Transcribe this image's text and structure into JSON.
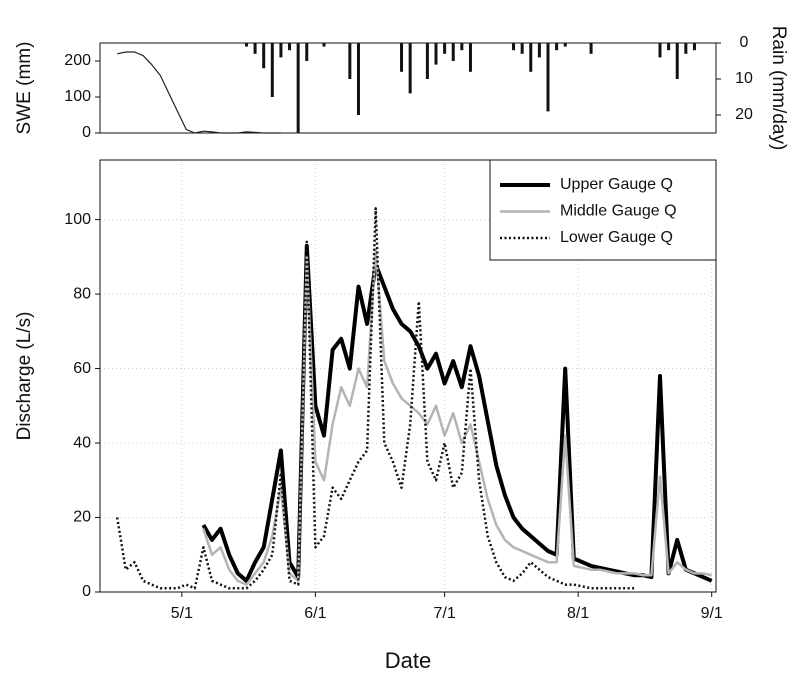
{
  "chart_data": [
    {
      "type": "combo",
      "y_label": "SWE (mm)",
      "y2_label": "Rain (mm/day)",
      "x": [
        "4/16",
        "4/18",
        "4/20",
        "4/22",
        "4/24",
        "4/26",
        "4/28",
        "4/30",
        "5/2",
        "5/4",
        "5/6",
        "5/8",
        "5/10",
        "5/12",
        "5/14",
        "5/16",
        "5/18",
        "5/20",
        "5/22",
        "5/24",
        "5/26",
        "5/28",
        "5/30",
        "6/1",
        "6/3",
        "6/5",
        "6/7",
        "6/9",
        "6/11",
        "6/13",
        "6/15",
        "6/17",
        "6/19",
        "6/21",
        "6/23",
        "6/25",
        "6/27",
        "6/29",
        "7/1",
        "7/3",
        "7/5",
        "7/7",
        "7/9",
        "7/11",
        "7/13",
        "7/15",
        "7/17",
        "7/19",
        "7/21",
        "7/23",
        "7/25",
        "7/27",
        "7/29",
        "7/31",
        "8/2",
        "8/4",
        "8/6",
        "8/8",
        "8/10",
        "8/12",
        "8/14",
        "8/16",
        "8/18",
        "8/20",
        "8/22",
        "8/24",
        "8/26",
        "8/28",
        "8/30",
        "9/1"
      ],
      "xlim": [
        "4/12",
        "9/2"
      ],
      "ylim": [
        0,
        250
      ],
      "yticks": [
        0,
        100,
        200
      ],
      "y2lim": [
        0,
        25
      ],
      "y2ticks": [
        0,
        10,
        20
      ],
      "y2_reversed": true,
      "series": [
        {
          "name": "SWE",
          "kind": "line",
          "color": "#222222",
          "axis": "y",
          "values": [
            220,
            225,
            225,
            215,
            190,
            160,
            110,
            60,
            10,
            0,
            5,
            3,
            0,
            0,
            0,
            3,
            2,
            0,
            0,
            0,
            null,
            null,
            null,
            null,
            null,
            null,
            null,
            null,
            null,
            null,
            null,
            null,
            null,
            null,
            null,
            null,
            null,
            null,
            null,
            null,
            null,
            null,
            null,
            null,
            null,
            null,
            null,
            null,
            null,
            null,
            null,
            null,
            null,
            null,
            null,
            null,
            null,
            null,
            null,
            null,
            null,
            null,
            null,
            null,
            null,
            null,
            null,
            null,
            null,
            null
          ]
        },
        {
          "name": "Rain",
          "kind": "bar",
          "color": "#111111",
          "axis": "y2",
          "values": [
            0,
            0,
            0,
            0,
            0,
            0,
            0,
            0,
            0,
            0,
            0,
            0,
            0,
            0,
            0,
            1,
            3,
            7,
            15,
            4,
            2,
            25,
            5,
            0,
            1,
            0,
            0,
            10,
            20,
            0,
            0,
            0,
            0,
            8,
            14,
            0,
            10,
            6,
            3,
            5,
            2,
            8,
            0,
            0,
            0,
            0,
            2,
            3,
            8,
            4,
            19,
            2,
            1,
            0,
            0,
            3,
            0,
            0,
            0,
            0,
            0,
            0,
            0,
            4,
            2,
            10,
            3,
            2,
            0,
            0
          ]
        }
      ]
    },
    {
      "type": "line",
      "x_label": "Date",
      "y_label": "Discharge (L/s)",
      "x": [
        "4/16",
        "4/18",
        "4/20",
        "4/22",
        "4/24",
        "4/26",
        "4/28",
        "4/30",
        "5/2",
        "5/4",
        "5/6",
        "5/8",
        "5/10",
        "5/12",
        "5/14",
        "5/16",
        "5/18",
        "5/20",
        "5/22",
        "5/24",
        "5/26",
        "5/28",
        "5/30",
        "6/1",
        "6/3",
        "6/5",
        "6/7",
        "6/9",
        "6/11",
        "6/13",
        "6/15",
        "6/17",
        "6/19",
        "6/21",
        "6/23",
        "6/25",
        "6/27",
        "6/29",
        "7/1",
        "7/3",
        "7/5",
        "7/7",
        "7/9",
        "7/11",
        "7/13",
        "7/15",
        "7/17",
        "7/19",
        "7/21",
        "7/23",
        "7/25",
        "7/27",
        "7/29",
        "7/31",
        "8/2",
        "8/4",
        "8/6",
        "8/8",
        "8/10",
        "8/12",
        "8/14",
        "8/16",
        "8/18",
        "8/20",
        "8/22",
        "8/24",
        "8/26",
        "8/28",
        "8/30",
        "9/1"
      ],
      "xlim": [
        "4/12",
        "9/2"
      ],
      "xticks": [
        "5/1",
        "6/1",
        "7/1",
        "8/1",
        "9/1"
      ],
      "ylim": [
        0,
        116
      ],
      "yticks": [
        0,
        20,
        40,
        60,
        80,
        100
      ],
      "grid": true,
      "legend": "upper right",
      "series": [
        {
          "name": "Upper Gauge Q",
          "color": "#000000",
          "line_width": 4,
          "line_style": "solid",
          "values": [
            null,
            null,
            null,
            null,
            null,
            null,
            null,
            null,
            null,
            null,
            18,
            14,
            17,
            10,
            5,
            3,
            8,
            12,
            25,
            38,
            8,
            4,
            93,
            50,
            42,
            65,
            68,
            60,
            82,
            72,
            88,
            82,
            76,
            72,
            70,
            66,
            60,
            64,
            56,
            62,
            55,
            66,
            58,
            46,
            34,
            26,
            20,
            17,
            15,
            13,
            11,
            10,
            60,
            9,
            8,
            7,
            6.5,
            6,
            5.5,
            5,
            4.5,
            4.5,
            4,
            58,
            5,
            14,
            6,
            5,
            4,
            3
          ]
        },
        {
          "name": "Middle Gauge Q",
          "color": "#b4b4b4",
          "line_width": 2.5,
          "line_style": "solid",
          "values": [
            null,
            null,
            null,
            null,
            null,
            null,
            null,
            null,
            null,
            null,
            17,
            10,
            12,
            6,
            3,
            2,
            5,
            8,
            15,
            28,
            5,
            3,
            90,
            35,
            30,
            45,
            55,
            50,
            60,
            55,
            92,
            62,
            56,
            52,
            50,
            48,
            45,
            50,
            42,
            48,
            40,
            45,
            35,
            25,
            18,
            14,
            12,
            11,
            10,
            9,
            8,
            8,
            42,
            7,
            6.5,
            6,
            6,
            5.5,
            5,
            5,
            5,
            4.5,
            4.5,
            31,
            5,
            8,
            6,
            5,
            5,
            4.5
          ]
        },
        {
          "name": "Lower Gauge Q",
          "color": "#111111",
          "line_width": 2.5,
          "line_style": "dotted",
          "values": [
            20,
            6,
            8,
            3,
            2,
            1,
            1,
            1,
            2,
            1,
            12,
            3,
            2,
            1,
            1,
            1,
            3,
            6,
            10,
            32,
            3,
            2,
            94,
            12,
            15,
            28,
            25,
            30,
            35,
            38,
            103,
            40,
            35,
            28,
            45,
            78,
            35,
            30,
            40,
            28,
            32,
            60,
            30,
            15,
            8,
            4,
            3,
            5,
            8,
            6,
            4,
            3,
            2,
            2,
            1.5,
            1,
            1,
            1,
            1,
            1,
            1,
            null,
            null,
            null,
            null,
            null,
            null,
            null,
            null,
            null
          ]
        }
      ]
    }
  ]
}
